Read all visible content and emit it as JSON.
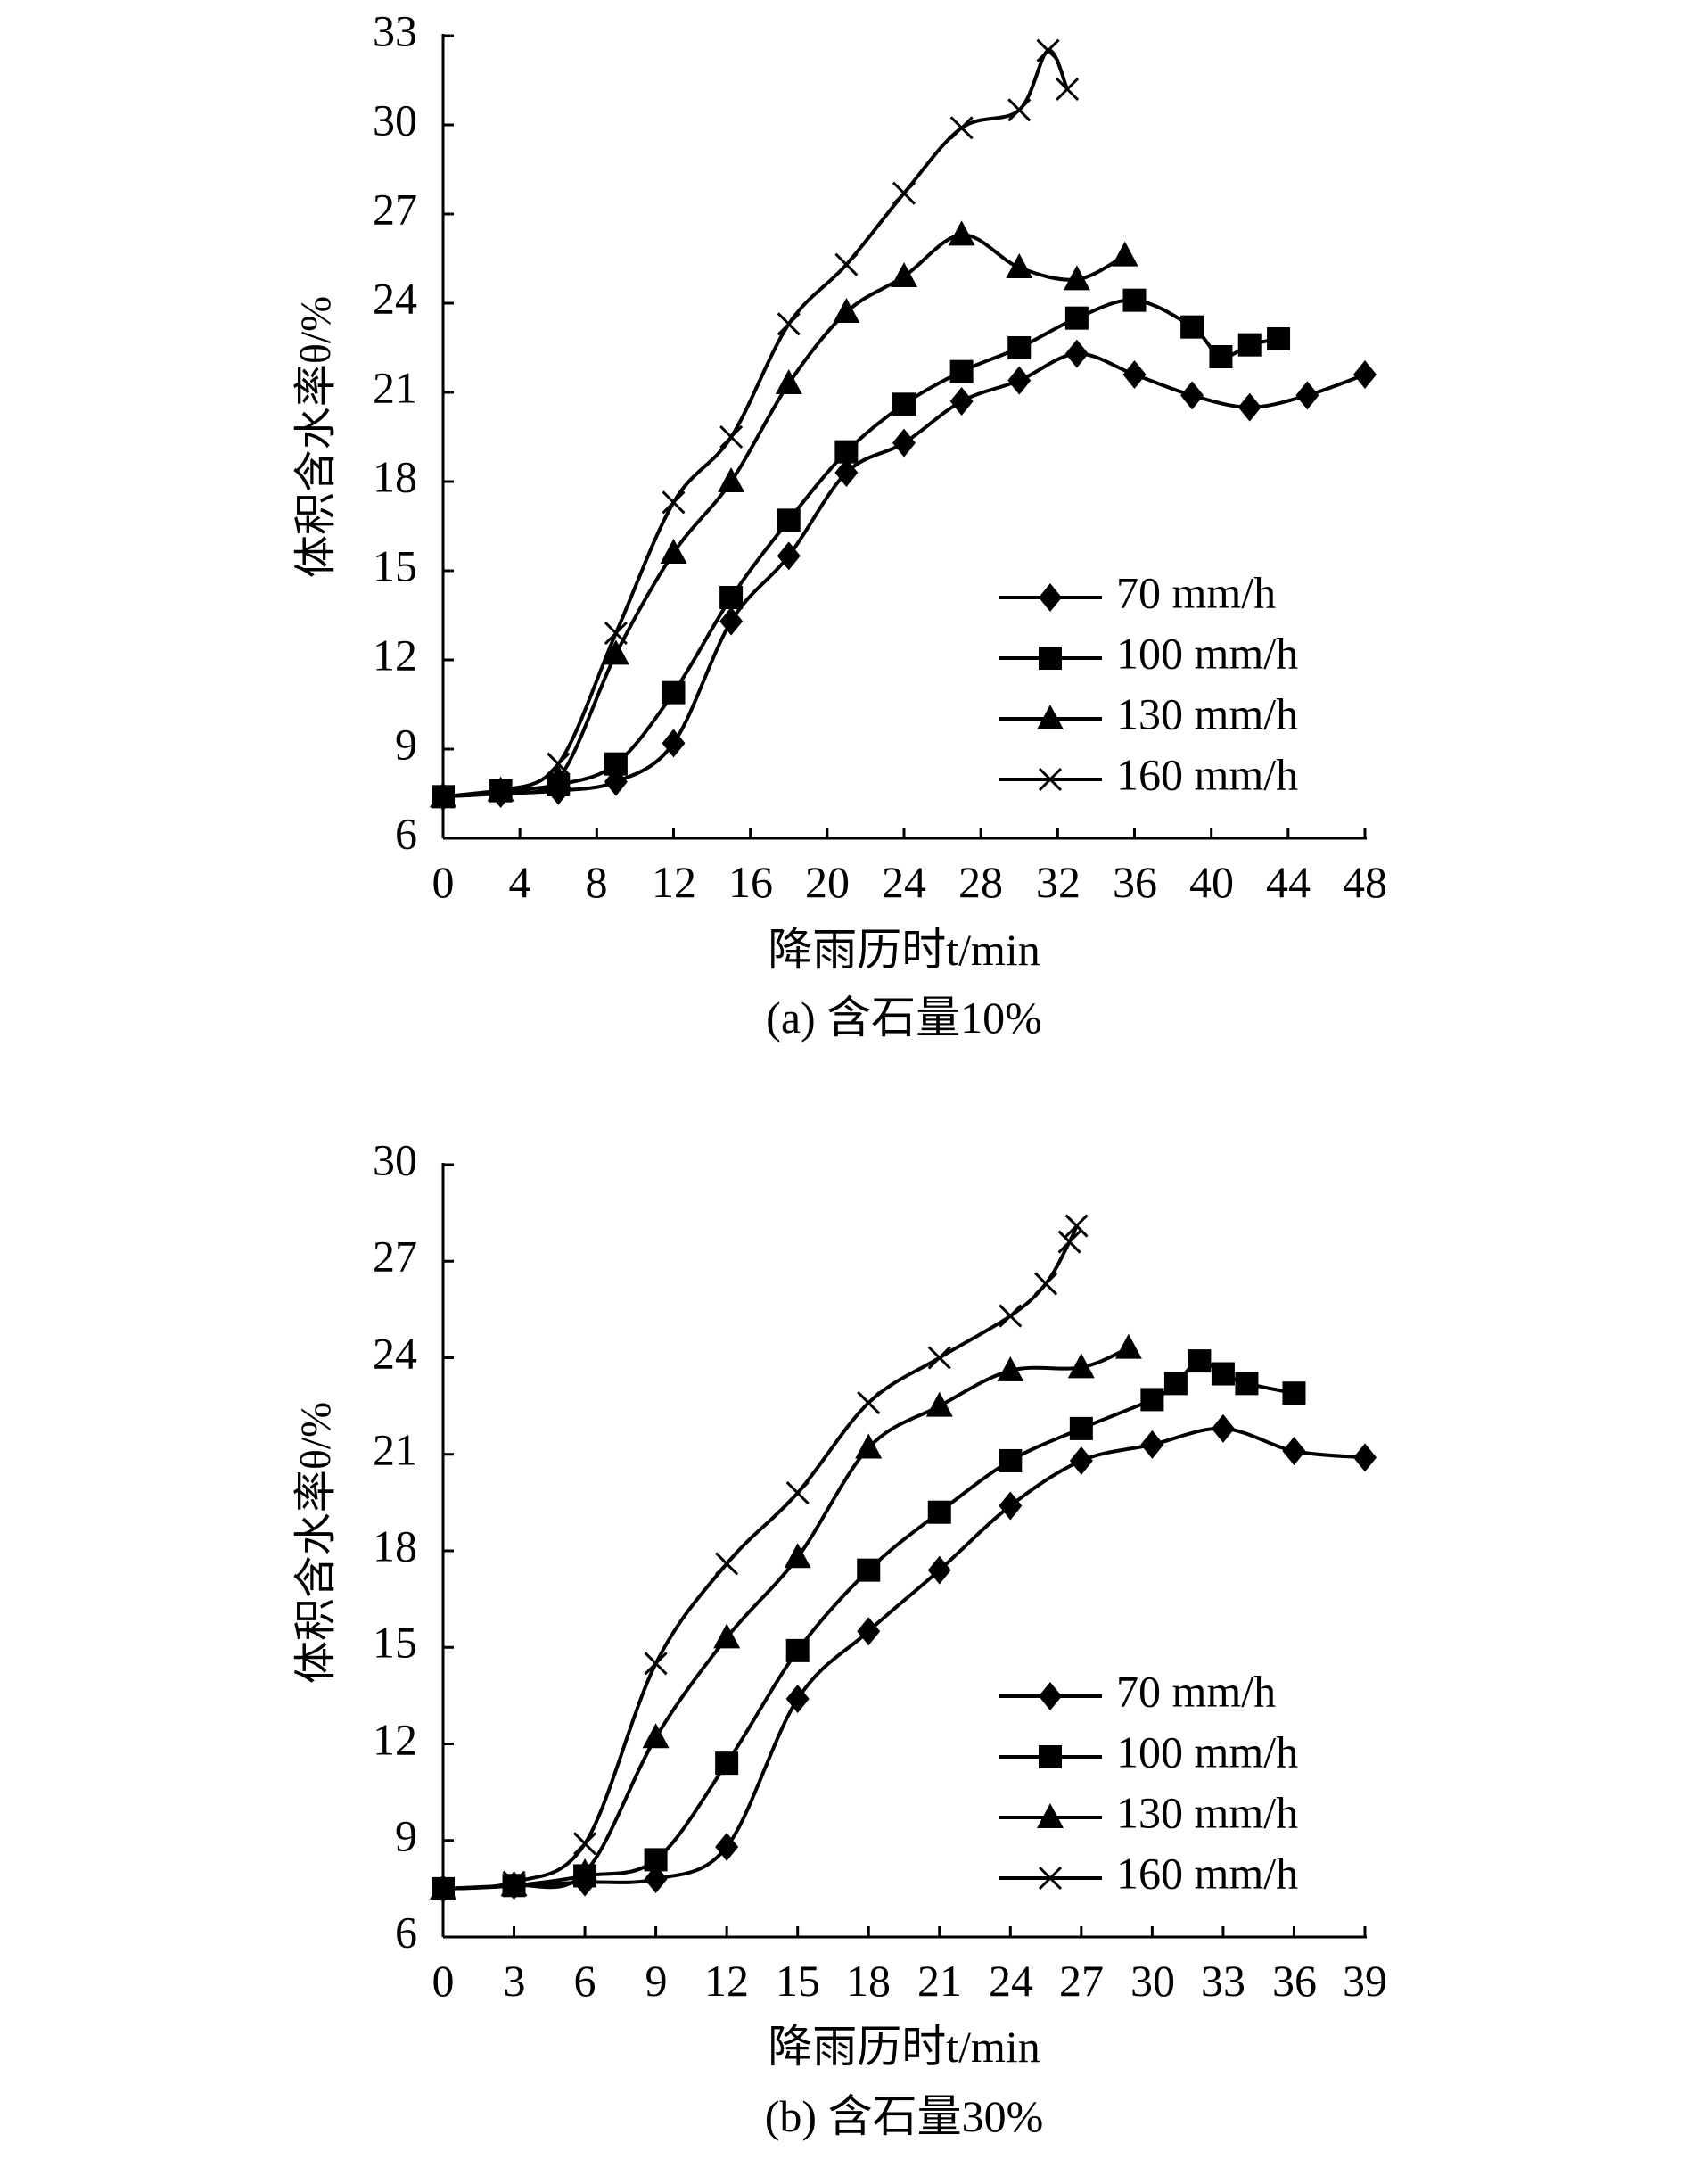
{
  "chart_data": [
    {
      "id": "a",
      "type": "line",
      "caption": "(a) 含石量10%",
      "xlabel": "降雨历时t/min",
      "ylabel": "体积含水率θ/%",
      "xlim": [
        0,
        48
      ],
      "ylim": [
        6,
        33
      ],
      "xticks": [
        0,
        4,
        8,
        12,
        16,
        20,
        24,
        28,
        32,
        36,
        40,
        44,
        48
      ],
      "yticks": [
        6,
        9,
        12,
        15,
        18,
        21,
        24,
        27,
        30,
        33
      ],
      "legend": "lower-right",
      "series": [
        {
          "name": "70 mm/h",
          "marker": "diamond",
          "x": [
            0,
            3,
            6,
            9,
            12,
            15,
            18,
            21,
            24,
            27,
            30,
            33,
            36,
            39,
            42,
            45,
            48
          ],
          "y": [
            7.4,
            7.5,
            7.6,
            7.9,
            9.2,
            13.3,
            15.5,
            18.3,
            19.3,
            20.7,
            21.4,
            22.3,
            21.6,
            20.9,
            20.5,
            20.9,
            21.6
          ]
        },
        {
          "name": "100 mm/h",
          "marker": "square",
          "x": [
            0,
            3,
            6,
            9,
            12,
            15,
            18,
            21,
            24,
            27,
            30,
            33,
            36,
            39,
            40.5,
            42,
            43.5
          ],
          "y": [
            7.4,
            7.6,
            7.8,
            8.5,
            10.9,
            14.1,
            16.7,
            19.0,
            20.6,
            21.7,
            22.5,
            23.5,
            24.1,
            23.2,
            22.2,
            22.6,
            22.8
          ]
        },
        {
          "name": "130 mm/h",
          "marker": "triangle",
          "x": [
            0,
            3,
            6,
            9,
            12,
            15,
            18,
            21,
            24,
            27,
            30,
            33,
            35.5
          ],
          "y": [
            7.4,
            7.6,
            8.0,
            12.2,
            15.6,
            18.0,
            21.3,
            23.7,
            24.9,
            26.3,
            25.2,
            24.8,
            25.6
          ]
        },
        {
          "name": "160 mm/h",
          "marker": "x",
          "x": [
            0,
            3,
            6,
            9,
            12,
            15,
            18,
            21,
            24,
            27,
            30,
            31.5,
            32.5
          ],
          "y": [
            7.4,
            7.6,
            8.5,
            12.9,
            17.3,
            19.5,
            23.3,
            25.3,
            27.7,
            29.9,
            30.5,
            32.5,
            31.2
          ]
        }
      ]
    },
    {
      "id": "b",
      "type": "line",
      "caption": "(b) 含石量30%",
      "xlabel": "降雨历时t/min",
      "ylabel": "体积含水率θ/%",
      "xlim": [
        0,
        39
      ],
      "ylim": [
        6,
        30
      ],
      "xticks": [
        0,
        3,
        6,
        9,
        12,
        15,
        18,
        21,
        24,
        27,
        30,
        33,
        36,
        39
      ],
      "yticks": [
        6,
        9,
        12,
        15,
        18,
        21,
        24,
        27,
        30
      ],
      "legend": "lower-right",
      "series": [
        {
          "name": "70 mm/h",
          "marker": "diamond",
          "x": [
            0,
            3,
            6,
            9,
            12,
            15,
            18,
            21,
            24,
            27,
            30,
            33,
            36,
            39
          ],
          "y": [
            7.5,
            7.6,
            7.7,
            7.8,
            8.8,
            13.4,
            15.5,
            17.4,
            19.4,
            20.8,
            21.3,
            21.8,
            21.1,
            20.9
          ]
        },
        {
          "name": "100 mm/h",
          "marker": "square",
          "x": [
            0,
            3,
            6,
            9,
            12,
            15,
            18,
            21,
            24,
            27,
            30,
            31,
            32,
            33,
            34,
            36
          ],
          "y": [
            7.5,
            7.6,
            7.9,
            8.4,
            11.4,
            14.9,
            17.4,
            19.2,
            20.8,
            21.8,
            22.7,
            23.2,
            23.9,
            23.5,
            23.2,
            22.9
          ]
        },
        {
          "name": "130 mm/h",
          "marker": "triangle",
          "x": [
            0,
            3,
            6,
            9,
            12,
            15,
            18,
            21,
            24,
            27,
            29
          ],
          "y": [
            7.5,
            7.6,
            8.0,
            12.2,
            15.3,
            17.8,
            21.2,
            22.5,
            23.6,
            23.7,
            24.3
          ]
        },
        {
          "name": "160 mm/h",
          "marker": "x",
          "x": [
            0,
            3,
            6,
            9,
            12,
            15,
            18,
            21,
            24,
            25.5,
            26.5,
            26.8
          ],
          "y": [
            7.5,
            7.7,
            8.9,
            14.5,
            17.6,
            19.8,
            22.6,
            24.0,
            25.3,
            26.3,
            27.6,
            28.1
          ]
        }
      ]
    }
  ]
}
